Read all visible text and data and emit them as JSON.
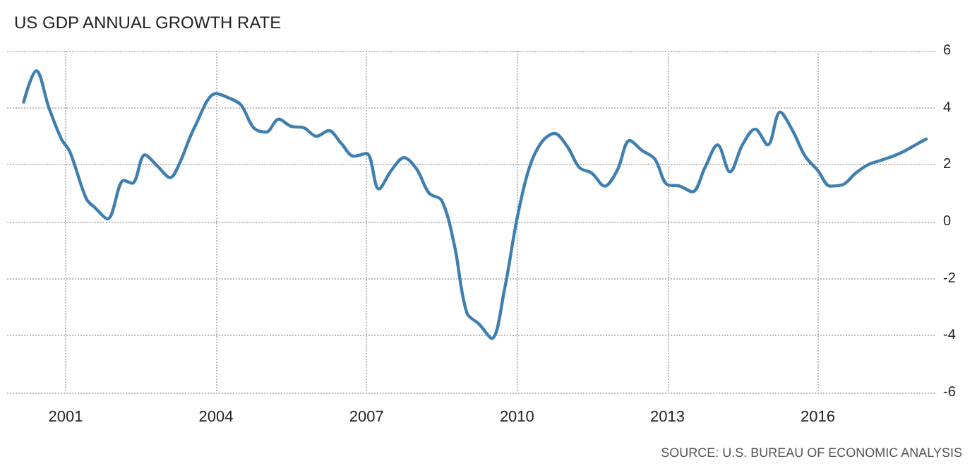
{
  "chart_data": {
    "type": "line",
    "title": "US GDP ANNUAL GROWTH RATE",
    "annotations": [
      "SOURCE: U.S. BUREAU OF ECONOMIC ANALYSIS"
    ],
    "x": [
      "2000-03",
      "2000-06",
      "2000-09",
      "2000-12",
      "2001-02",
      "2001-06",
      "2001-08",
      "2001-11",
      "2002-03",
      "2002-05",
      "2002-08",
      "2002-11",
      "2003-02",
      "2003-04",
      "2003-08",
      "2004-01",
      "2004-04",
      "2004-07",
      "2004-10",
      "2005-01",
      "2005-04",
      "2005-07",
      "2005-10",
      "2006-01",
      "2006-04",
      "2006-07",
      "2006-10",
      "2007-01",
      "2007-04",
      "2007-07",
      "2007-10",
      "2008-01",
      "2008-04",
      "2008-07",
      "2008-10",
      "2009-01",
      "2009-04",
      "2009-07",
      "2009-10",
      "2010-01",
      "2010-04",
      "2010-07",
      "2010-10",
      "2011-01",
      "2011-04",
      "2011-07",
      "2011-10",
      "2012-01",
      "2012-04",
      "2012-07",
      "2012-10",
      "2013-01",
      "2013-04",
      "2013-07",
      "2013-10",
      "2014-01",
      "2014-04",
      "2014-07",
      "2014-10",
      "2015-01",
      "2015-04",
      "2015-07",
      "2015-10",
      "2016-01",
      "2016-04",
      "2016-07",
      "2016-10",
      "2017-01",
      "2017-04",
      "2017-07",
      "2017-10",
      "2018-01",
      "2018-03"
    ],
    "series": [
      {
        "color": "#3f7fb0",
        "values": [
          4.2,
          5.3,
          4.0,
          2.9,
          2.45,
          0.8,
          0.5,
          0.1,
          1.45,
          1.35,
          2.35,
          1.95,
          1.55,
          1.95,
          3.35,
          4.5,
          4.35,
          4.1,
          3.3,
          3.15,
          3.6,
          3.35,
          3.3,
          3.0,
          3.2,
          2.75,
          2.3,
          2.4,
          1.15,
          1.8,
          2.25,
          1.85,
          1.0,
          0.75,
          -0.8,
          -3.2,
          -3.6,
          -4.1,
          -2.4,
          0.1,
          1.9,
          2.8,
          3.1,
          2.65,
          1.9,
          1.7,
          1.25,
          1.8,
          2.85,
          2.5,
          2.2,
          1.3,
          1.25,
          1.05,
          1.9,
          2.7,
          1.75,
          2.7,
          3.25,
          2.7,
          3.85,
          3.2,
          2.3,
          1.8,
          1.25,
          1.3,
          1.7,
          2.0,
          2.15,
          2.3,
          2.5,
          2.75,
          2.9
        ]
      }
    ],
    "xlim": [
      "1999-11",
      "2018-05"
    ],
    "xticks": [
      "2001",
      "2004",
      "2007",
      "2010",
      "2013",
      "2016"
    ],
    "ylim": [
      -6,
      6
    ],
    "yticks": [
      -6,
      -4,
      -2,
      0,
      2,
      4,
      6
    ],
    "grid": true,
    "marker": "none",
    "line_style": "solid"
  }
}
